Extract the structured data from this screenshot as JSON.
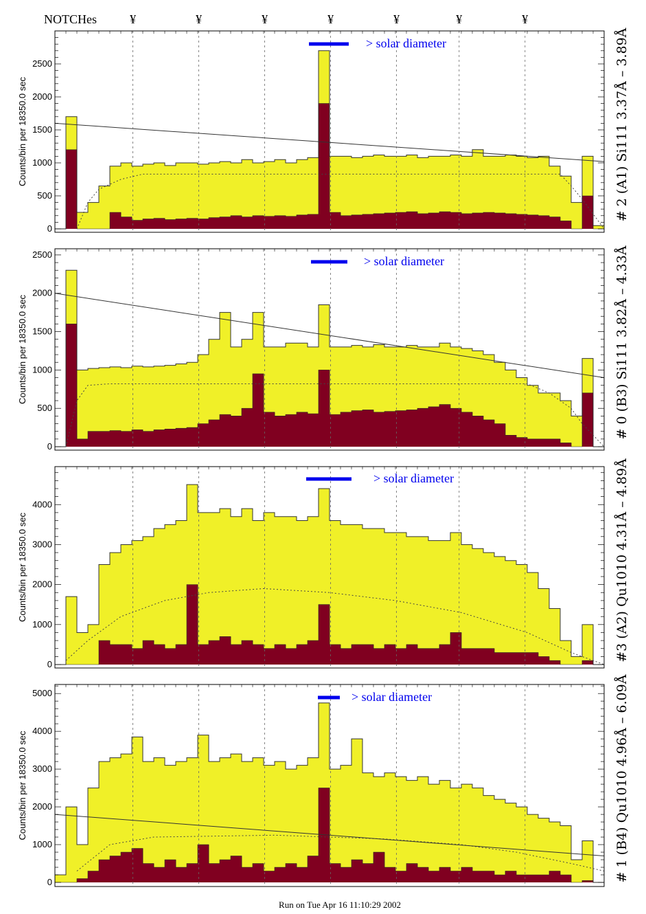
{
  "header": {
    "notches_label": "NOTCHes",
    "notch_symbol": "¥"
  },
  "footer": {
    "run_text": "Run on Tue Apr 16 11:10:29 2002"
  },
  "colors": {
    "total_fill": "#f0f028",
    "subset_fill": "#800020",
    "solar_bar": "#0000ee",
    "outline": "#000000"
  },
  "chart_data": [
    {
      "type": "bar",
      "title": "# 2 (A1) Si111  3.37Å – 3.89Å",
      "ylabel": "Counts/bin per  18350.0 sec",
      "solar_label": "> solar diameter",
      "ylim": [
        0,
        3000
      ],
      "yticks": [
        0,
        500,
        1000,
        1500,
        2000,
        2500
      ],
      "notches": [
        7.1,
        13.1,
        19.1,
        25.1,
        31.1,
        36.8,
        42.8
      ],
      "total": [
        0,
        1700,
        250,
        400,
        650,
        950,
        1000,
        950,
        980,
        1000,
        960,
        1000,
        1000,
        980,
        1000,
        1020,
        1000,
        1050,
        1000,
        1020,
        1050,
        1000,
        1050,
        1080,
        2700,
        1100,
        1100,
        1080,
        1100,
        1120,
        1100,
        1100,
        1120,
        1080,
        1100,
        1100,
        1120,
        1100,
        1200,
        1100,
        1100,
        1120,
        1100,
        1080,
        1100,
        950,
        800,
        400,
        1100,
        50
      ],
      "subset": [
        0,
        1200,
        0,
        0,
        0,
        250,
        180,
        130,
        150,
        160,
        140,
        150,
        160,
        150,
        170,
        180,
        200,
        180,
        200,
        190,
        200,
        190,
        210,
        220,
        1900,
        250,
        200,
        210,
        220,
        230,
        240,
        250,
        260,
        230,
        240,
        260,
        250,
        230,
        240,
        250,
        240,
        230,
        220,
        210,
        200,
        180,
        120,
        0,
        500,
        0
      ],
      "fit_line": [
        1600,
        1020
      ],
      "model_curve": [
        [
          2,
          0
        ],
        [
          3,
          400
        ],
        [
          4,
          600
        ],
        [
          6,
          750
        ],
        [
          8,
          830
        ],
        [
          46,
          830
        ],
        [
          47,
          650
        ],
        [
          48,
          450
        ],
        [
          50,
          0
        ]
      ]
    },
    {
      "type": "bar",
      "title": "# 0 (B3) Si111  3.82Å – 4.33Å",
      "ylabel": "Counts/bin per  18350.0 sec",
      "solar_label": "> solar diameter",
      "ylim": [
        0,
        2580
      ],
      "yticks": [
        0,
        500,
        1000,
        1500,
        2000,
        2500
      ],
      "notches": [
        7.1,
        13.1,
        19.1,
        25.1,
        31.1,
        36.8,
        42.8
      ],
      "total": [
        0,
        2300,
        1000,
        1020,
        1030,
        1040,
        1030,
        1050,
        1040,
        1050,
        1060,
        1080,
        1100,
        1200,
        1400,
        1750,
        1300,
        1400,
        1750,
        1300,
        1300,
        1350,
        1350,
        1300,
        1850,
        1300,
        1300,
        1320,
        1300,
        1330,
        1300,
        1300,
        1320,
        1300,
        1300,
        1350,
        1300,
        1280,
        1250,
        1200,
        1100,
        1000,
        900,
        800,
        700,
        700,
        600,
        400,
        1150,
        0
      ],
      "subset": [
        0,
        1600,
        100,
        200,
        200,
        210,
        200,
        220,
        200,
        220,
        230,
        240,
        250,
        300,
        350,
        420,
        400,
        500,
        950,
        450,
        400,
        420,
        450,
        430,
        1000,
        420,
        450,
        470,
        480,
        450,
        460,
        470,
        480,
        500,
        520,
        550,
        500,
        450,
        400,
        350,
        300,
        150,
        120,
        100,
        100,
        100,
        50,
        0,
        700,
        0
      ],
      "fit_line": [
        2000,
        900
      ],
      "model_curve": [
        [
          1,
          0
        ],
        [
          2,
          600
        ],
        [
          3,
          800
        ],
        [
          5,
          820
        ],
        [
          43,
          820
        ],
        [
          45,
          700
        ],
        [
          47,
          500
        ],
        [
          48,
          300
        ],
        [
          50,
          0
        ]
      ]
    },
    {
      "type": "bar",
      "title": "#3 (A2) Qu1010  4.31Å – 4.89Å",
      "ylabel": "Counts/bin per  18350.0 sec",
      "solar_label": "> solar diameter",
      "ylim": [
        0,
        4950
      ],
      "yticks": [
        0,
        1000,
        2000,
        3000,
        4000
      ],
      "notches": [
        7.1,
        13.1,
        19.1,
        25.1,
        31.1,
        36.8,
        42.8
      ],
      "total": [
        0,
        1700,
        800,
        1000,
        2500,
        2800,
        3000,
        3100,
        3200,
        3400,
        3500,
        3600,
        4500,
        3800,
        3800,
        3900,
        3700,
        3900,
        3600,
        3800,
        3700,
        3700,
        3600,
        3700,
        4400,
        3600,
        3500,
        3500,
        3400,
        3400,
        3300,
        3300,
        3200,
        3200,
        3100,
        3100,
        3300,
        3000,
        2900,
        2800,
        2700,
        2600,
        2500,
        2300,
        1900,
        1400,
        600,
        200,
        1000,
        0
      ],
      "subset": [
        0,
        0,
        0,
        0,
        600,
        500,
        500,
        400,
        600,
        500,
        400,
        500,
        2000,
        500,
        600,
        700,
        500,
        600,
        500,
        400,
        500,
        400,
        500,
        600,
        1500,
        500,
        400,
        500,
        500,
        400,
        500,
        400,
        500,
        400,
        400,
        500,
        800,
        400,
        400,
        400,
        300,
        300,
        300,
        300,
        200,
        100,
        0,
        0,
        100,
        0
      ],
      "fit_line": [],
      "model_curve": [
        [
          1,
          100
        ],
        [
          3,
          600
        ],
        [
          6,
          1200
        ],
        [
          10,
          1600
        ],
        [
          14,
          1800
        ],
        [
          19,
          1900
        ],
        [
          25,
          1800
        ],
        [
          31,
          1600
        ],
        [
          37,
          1300
        ],
        [
          43,
          800
        ],
        [
          47,
          300
        ],
        [
          50,
          0
        ]
      ]
    },
    {
      "type": "bar",
      "title": "# 1 (B4) Qu1010 4.96Å – 6.09Å",
      "ylabel": "Counts/bin per  18350.0 sec",
      "solar_label": "> solar diameter",
      "ylim": [
        0,
        5240
      ],
      "yticks": [
        0,
        1000,
        2000,
        3000,
        4000,
        5000
      ],
      "notches": [
        7.1,
        13.1,
        19.1,
        25.1,
        31.1,
        36.8,
        42.8
      ],
      "total": [
        200,
        2000,
        1000,
        2500,
        3200,
        3300,
        3400,
        3850,
        3200,
        3300,
        3100,
        3200,
        3300,
        3900,
        3200,
        3300,
        3400,
        3200,
        3300,
        3100,
        3200,
        3000,
        3100,
        3300,
        4750,
        3000,
        3100,
        3800,
        2900,
        2800,
        2900,
        2800,
        2700,
        2800,
        2600,
        2700,
        2500,
        2600,
        2500,
        2300,
        2200,
        2100,
        2000,
        1800,
        1700,
        1600,
        1500,
        600,
        1100,
        0
      ],
      "subset": [
        0,
        0,
        100,
        300,
        600,
        700,
        800,
        900,
        500,
        400,
        600,
        400,
        500,
        1000,
        500,
        600,
        700,
        400,
        500,
        300,
        400,
        500,
        400,
        700,
        2500,
        500,
        400,
        600,
        500,
        800,
        400,
        300,
        500,
        400,
        300,
        400,
        300,
        400,
        300,
        300,
        200,
        300,
        200,
        200,
        200,
        300,
        200,
        0,
        50,
        0
      ],
      "fit_line": [
        1800,
        700
      ],
      "model_curve": [
        [
          2,
          300
        ],
        [
          5,
          1000
        ],
        [
          9,
          1200
        ],
        [
          20,
          1250
        ],
        [
          30,
          1150
        ],
        [
          37,
          1000
        ],
        [
          42,
          800
        ],
        [
          47,
          500
        ],
        [
          50,
          300
        ]
      ]
    }
  ]
}
